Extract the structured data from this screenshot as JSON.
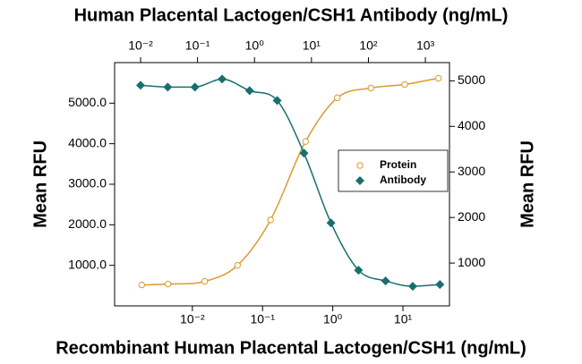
{
  "chart_data": {
    "type": "scatter",
    "title": "Human Placental Lactogen/CSH1 Antibody (ng/mL)",
    "xlabel": "Recombinant Human Placental Lactogen/CSH1 (ng/mL)",
    "ylabel": "Mean RFU",
    "y2label": "Mean RFU",
    "xscale": "log",
    "x2scale": "log",
    "xlim": [
      0.00078,
      46
    ],
    "xticks": [
      {
        "value": 0.01,
        "label": "10⁻²"
      },
      {
        "value": 0.1,
        "label": "10⁻¹"
      },
      {
        "value": 1,
        "label": "10⁰"
      },
      {
        "value": 10,
        "label": "10¹"
      }
    ],
    "x2lim": [
      0.0035,
      2650
    ],
    "x2ticks": [
      {
        "value": 0.01,
        "label": "10⁻²"
      },
      {
        "value": 0.1,
        "label": "10⁻¹"
      },
      {
        "value": 1,
        "label": "10⁰"
      },
      {
        "value": 10,
        "label": "10¹"
      },
      {
        "value": 100,
        "label": "10²"
      },
      {
        "value": 1000,
        "label": "10³"
      }
    ],
    "ylim": [
      0,
      6000
    ],
    "yticks": [
      {
        "value": 1000,
        "label": "1000.0"
      },
      {
        "value": 2000,
        "label": "2000.0"
      },
      {
        "value": 3000,
        "label": "3000.0"
      },
      {
        "value": 4000,
        "label": "4000.0"
      },
      {
        "value": 5000,
        "label": "5000.0"
      }
    ],
    "y2lim": [
      60,
      5400
    ],
    "y2ticks": [
      1000,
      2000,
      3000,
      4000,
      5000
    ],
    "legend": "right",
    "series": [
      {
        "name": "Protein",
        "color": "#dc9a2e",
        "marker": "circle",
        "x": [
          0.0019,
          0.0045,
          0.015,
          0.044,
          0.13,
          0.41,
          1.16,
          3.5,
          10.6,
          32
        ],
        "values": [
          516,
          538,
          604,
          1000,
          2121,
          4055,
          5132,
          5374,
          5460,
          5615
        ]
      },
      {
        "name": "Antibody",
        "color": "#17706e",
        "marker": "diamond",
        "axis": "y2",
        "xaxis": "x2",
        "x": [
          0.01,
          0.03,
          0.09,
          0.27,
          0.82,
          2.5,
          7.4,
          22,
          67,
          200,
          600,
          1800
        ],
        "values": [
          4902,
          4863,
          4863,
          5039,
          4784,
          4569,
          3412,
          1882,
          843,
          608,
          490,
          529
        ]
      }
    ]
  }
}
